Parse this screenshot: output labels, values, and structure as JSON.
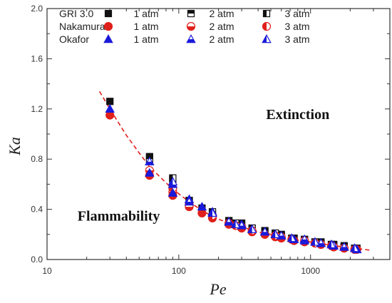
{
  "chart_data": {
    "type": "scatter",
    "title": "",
    "xlabel": "Pe",
    "ylabel": "Ka",
    "xscale": "log",
    "xlim": [
      10,
      4000
    ],
    "ylim": [
      0.0,
      2.0
    ],
    "x_ticks": [
      {
        "value": 10,
        "label": "10"
      },
      {
        "value": 100,
        "label": "100"
      },
      {
        "value": 1000,
        "label": "1000"
      }
    ],
    "y_ticks": [
      {
        "value": 0.0,
        "label": "0.0"
      },
      {
        "value": 0.4,
        "label": "0.4"
      },
      {
        "value": 0.8,
        "label": "0.8"
      },
      {
        "value": 1.2,
        "label": "1.2"
      },
      {
        "value": 1.6,
        "label": "1.6"
      },
      {
        "value": 2.0,
        "label": "2.0"
      }
    ],
    "grid": false,
    "legend_position": "top-left",
    "legend_groups": [
      "GRI 3.0",
      "Nakamura",
      "Okafor"
    ],
    "legend_pressures": [
      "1 atm",
      "2 atm",
      "3 atm"
    ],
    "annotations": [
      {
        "text": "Extinction",
        "x": 800,
        "y": 1.12
      },
      {
        "text": "Flammability",
        "x": 35,
        "y": 0.31
      }
    ],
    "fit_line": {
      "color": "#e0201b",
      "style": "dashed",
      "x": [
        25,
        30,
        40,
        50,
        60,
        75,
        90,
        120,
        150,
        200,
        250,
        300,
        400,
        500,
        700,
        1000,
        1500,
        2000,
        2800
      ],
      "y": [
        1.34,
        1.2,
        0.99,
        0.85,
        0.74,
        0.64,
        0.56,
        0.46,
        0.39,
        0.32,
        0.29,
        0.26,
        0.22,
        0.2,
        0.16,
        0.14,
        0.11,
        0.095,
        0.075
      ]
    },
    "series": [
      {
        "name": "GRI 3.0",
        "legend_label": "1 atm",
        "marker": "square",
        "fill": "full",
        "color": "#111111",
        "x": [
          30,
          60,
          90,
          120,
          150,
          240,
          300,
          360,
          450,
          540,
          600,
          750,
          900,
          1200,
          1500,
          1800,
          2250
        ],
        "y": [
          1.26,
          0.82,
          0.56,
          0.47,
          0.41,
          0.31,
          0.29,
          0.25,
          0.23,
          0.21,
          0.2,
          0.17,
          0.16,
          0.14,
          0.12,
          0.11,
          0.09
        ]
      },
      {
        "name": "GRI 3.0",
        "legend_label": "2 atm",
        "marker": "square",
        "fill": "top",
        "color": "#111111",
        "x": [
          60,
          90,
          120,
          180,
          240,
          300,
          450,
          600,
          900,
          1200,
          1500,
          1800
        ],
        "y": [
          0.8,
          0.64,
          0.47,
          0.37,
          0.3,
          0.27,
          0.22,
          0.19,
          0.16,
          0.13,
          0.11,
          0.1
        ]
      },
      {
        "name": "GRI 3.0",
        "legend_label": "3 atm",
        "marker": "square",
        "fill": "left",
        "color": "#111111",
        "x": [
          90,
          180,
          270,
          360,
          540,
          720,
          1080,
          1440,
          2160
        ],
        "y": [
          0.65,
          0.38,
          0.29,
          0.25,
          0.21,
          0.17,
          0.14,
          0.12,
          0.09
        ]
      },
      {
        "name": "Nakamura",
        "legend_label": "1 atm",
        "marker": "circle",
        "fill": "full",
        "color": "#e0201b",
        "x": [
          30,
          60,
          90,
          120,
          150,
          240,
          300,
          360,
          450,
          540,
          600,
          750,
          900,
          1200,
          1500,
          1800,
          2250
        ],
        "y": [
          1.15,
          0.67,
          0.51,
          0.44,
          0.37,
          0.29,
          0.26,
          0.22,
          0.2,
          0.18,
          0.17,
          0.15,
          0.14,
          0.12,
          0.1,
          0.09,
          0.08
        ]
      },
      {
        "name": "Nakamura",
        "legend_label": "2 atm",
        "marker": "circle",
        "fill": "bottom",
        "color": "#e0201b",
        "x": [
          60,
          90,
          120,
          180,
          240,
          300,
          450,
          600,
          900,
          1200,
          1500,
          1800
        ],
        "y": [
          0.71,
          0.54,
          0.42,
          0.33,
          0.28,
          0.25,
          0.2,
          0.18,
          0.15,
          0.12,
          0.1,
          0.09
        ]
      },
      {
        "name": "Nakamura",
        "legend_label": "3 atm",
        "marker": "circle",
        "fill": "left",
        "color": "#e0201b",
        "x": [
          90,
          180,
          270,
          360,
          540,
          720,
          1080,
          1440,
          2160
        ],
        "y": [
          0.57,
          0.35,
          0.27,
          0.23,
          0.19,
          0.16,
          0.13,
          0.11,
          0.08
        ]
      },
      {
        "name": "Okafor",
        "legend_label": "1 atm",
        "marker": "triangle",
        "fill": "full",
        "color": "#1a1adb",
        "x": [
          30,
          60,
          90,
          120,
          150,
          240,
          300,
          360,
          450,
          540,
          600,
          750,
          900,
          1200,
          1500,
          1800,
          2250
        ],
        "y": [
          1.2,
          0.69,
          0.53,
          0.48,
          0.42,
          0.3,
          0.28,
          0.24,
          0.22,
          0.2,
          0.19,
          0.16,
          0.15,
          0.13,
          0.11,
          0.1,
          0.08
        ]
      },
      {
        "name": "Okafor",
        "legend_label": "2 atm",
        "marker": "triangle",
        "fill": "bottom",
        "color": "#1a1adb",
        "x": [
          60,
          90,
          120,
          180,
          240,
          300,
          450,
          600,
          900,
          1200,
          1500,
          1800
        ],
        "y": [
          0.78,
          0.6,
          0.46,
          0.38,
          0.3,
          0.27,
          0.22,
          0.19,
          0.16,
          0.13,
          0.11,
          0.1
        ]
      },
      {
        "name": "Okafor",
        "legend_label": "3 atm",
        "marker": "triangle",
        "fill": "left",
        "color": "#1a1adb",
        "x": [
          90,
          180,
          270,
          360,
          540,
          720,
          1080,
          1440,
          2160
        ],
        "y": [
          0.62,
          0.37,
          0.28,
          0.24,
          0.2,
          0.17,
          0.14,
          0.12,
          0.09
        ]
      }
    ]
  }
}
